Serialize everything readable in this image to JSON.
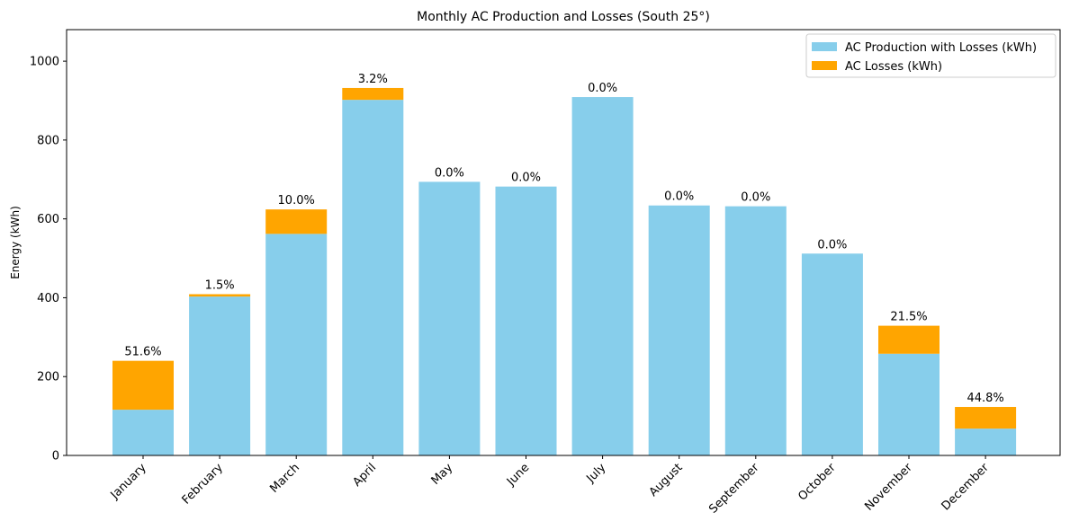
{
  "chart_data": {
    "type": "bar",
    "stacked": true,
    "title": "Monthly AC Production and Losses (South 25°)",
    "xlabel": "",
    "ylabel": "Energy (kWh)",
    "ylim": [
      0,
      1080
    ],
    "yticks": [
      0,
      200,
      400,
      600,
      800,
      1000
    ],
    "grid": false,
    "legend_position": "top-right",
    "categories": [
      "January",
      "February",
      "March",
      "April",
      "May",
      "June",
      "July",
      "August",
      "September",
      "October",
      "November",
      "December"
    ],
    "series": [
      {
        "name": "AC Production with Losses (kWh)",
        "color": "#87ceeb",
        "values": [
          116,
          403,
          562,
          902,
          694,
          682,
          909,
          634,
          632,
          512,
          258,
          68
        ]
      },
      {
        "name": "AC Losses (kWh)",
        "color": "#ffa500",
        "values": [
          124,
          6,
          62,
          30,
          0,
          0,
          0,
          0,
          0,
          0,
          71,
          55
        ]
      }
    ],
    "data_labels": [
      "51.6%",
      "1.5%",
      "10.0%",
      "3.2%",
      "0.0%",
      "0.0%",
      "0.0%",
      "0.0%",
      "0.0%",
      "0.0%",
      "21.5%",
      "44.8%"
    ]
  }
}
